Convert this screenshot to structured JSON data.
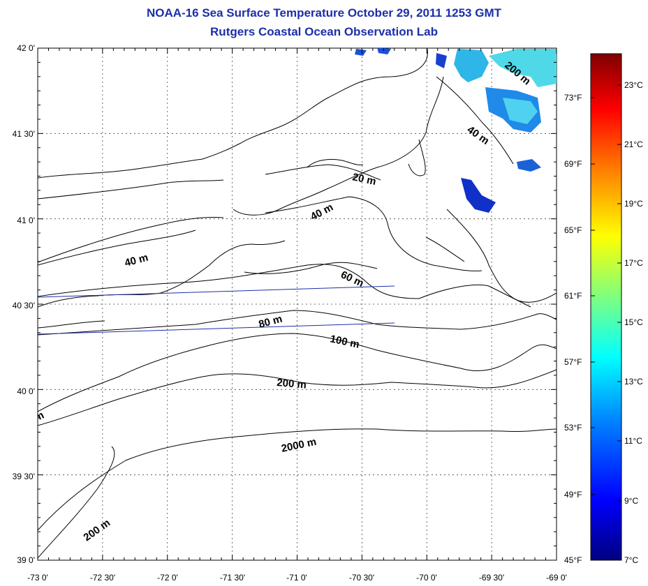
{
  "title": "NOAA-16 Sea Surface Temperature October 29, 2011 1253 GMT",
  "subtitle": "Rutgers Coastal Ocean Observation Lab",
  "lat_labels": [
    "42 0'",
    "41 30'",
    "41 0'",
    "40 30'",
    "40 0'",
    "39 30'",
    "39 0'"
  ],
  "lon_labels": [
    "-73 0'",
    "-72 30'",
    "-72 0'",
    "-71 30'",
    "-71 0'",
    "-70 30'",
    "-70 0'",
    "-69 30'",
    "-69 0'"
  ],
  "fahrenheit_labels": [
    "73°F",
    "69°F",
    "65°F",
    "61°F",
    "57°F",
    "53°F",
    "49°F",
    "45°F"
  ],
  "celsius_labels": [
    "23°C",
    "21°C",
    "19°C",
    "17°C",
    "15°C",
    "13°C",
    "11°C",
    "9°C",
    "7°C"
  ],
  "contour_labels": [
    "20 m",
    "40 m",
    "40 m",
    "40 m",
    "60 m",
    "80 m",
    "100 m",
    "200 m",
    "200 m",
    "2000 m",
    "200 m",
    "m"
  ],
  "colors": {
    "title": "#1c2fa8",
    "coast": "#000000",
    "transect": "#1c2fa8"
  },
  "colorbar": {
    "min_c": 7,
    "max_c": 24.5,
    "stops": [
      "#00007f",
      "#0000ff",
      "#007fff",
      "#00ffff",
      "#7fff7f",
      "#ffff00",
      "#ff7f00",
      "#ff0000",
      "#7f0000"
    ]
  }
}
